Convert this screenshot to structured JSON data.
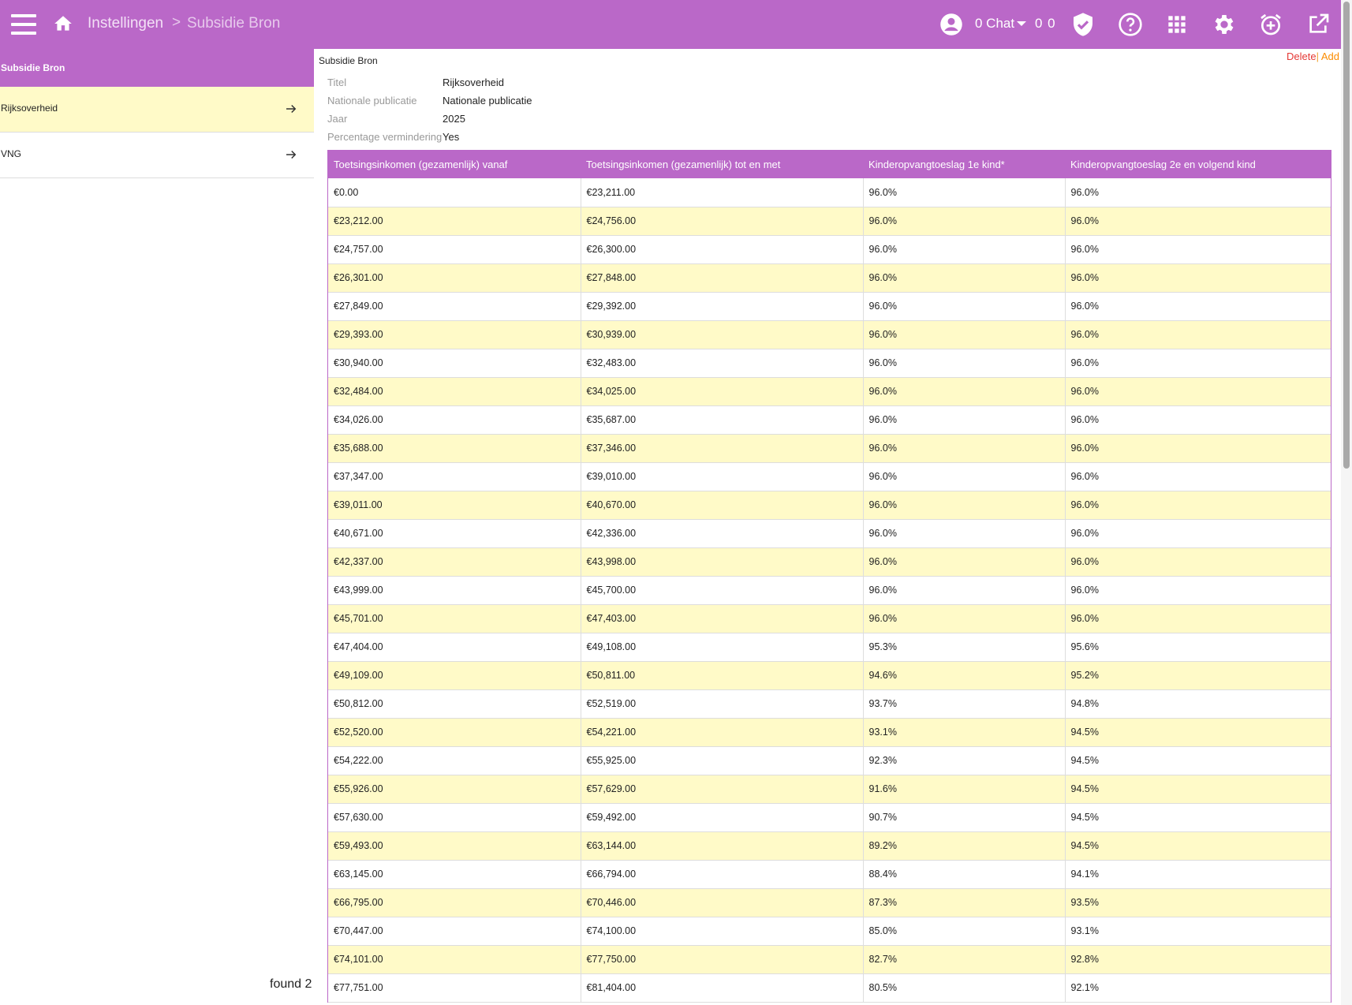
{
  "topbar": {
    "breadcrumb": [
      "Instellingen",
      "Subsidie Bron"
    ],
    "breadcrumb_separator": ">",
    "chat_label": "0 Chat",
    "counts": "0 0",
    "icons": [
      "menu-icon",
      "home-icon",
      "user-icon",
      "shield-check-icon",
      "help-icon",
      "apps-grid-icon",
      "gear-icon",
      "alarm-add-icon",
      "open-external-icon"
    ],
    "bg_color": "#ba68c8"
  },
  "sidebar": {
    "header": "Subsidie Bron",
    "items": [
      {
        "label": "Rijksoverheid",
        "active": true
      },
      {
        "label": "VNG",
        "active": false
      }
    ],
    "found": "found 2"
  },
  "main": {
    "title": "Subsidie Bron",
    "actions": {
      "delete": "Delete",
      "separator": "|",
      "add": "Add"
    },
    "fields": [
      {
        "label": "Titel",
        "value": "Rijksoverheid"
      },
      {
        "label": "Nationale publicatie",
        "value": "Nationale publicatie"
      },
      {
        "label": "Jaar",
        "value": "2025"
      },
      {
        "label": "Percentage vermindering",
        "value": "Yes"
      }
    ],
    "table": {
      "columns": [
        "Toetsingsinkomen (gezamenlijk) vanaf",
        "Toetsingsinkomen (gezamenlijk) tot en met",
        "Kinderopvangtoeslag 1e kind*",
        "Kinderopvangtoeslag 2e en volgend kind"
      ],
      "rows": [
        [
          "€0.00",
          "€23,211.00",
          "96.0%",
          "96.0%"
        ],
        [
          "€23,212.00",
          "€24,756.00",
          "96.0%",
          "96.0%"
        ],
        [
          "€24,757.00",
          "€26,300.00",
          "96.0%",
          "96.0%"
        ],
        [
          "€26,301.00",
          "€27,848.00",
          "96.0%",
          "96.0%"
        ],
        [
          "€27,849.00",
          "€29,392.00",
          "96.0%",
          "96.0%"
        ],
        [
          "€29,393.00",
          "€30,939.00",
          "96.0%",
          "96.0%"
        ],
        [
          "€30,940.00",
          "€32,483.00",
          "96.0%",
          "96.0%"
        ],
        [
          "€32,484.00",
          "€34,025.00",
          "96.0%",
          "96.0%"
        ],
        [
          "€34,026.00",
          "€35,687.00",
          "96.0%",
          "96.0%"
        ],
        [
          "€35,688.00",
          "€37,346.00",
          "96.0%",
          "96.0%"
        ],
        [
          "€37,347.00",
          "€39,010.00",
          "96.0%",
          "96.0%"
        ],
        [
          "€39,011.00",
          "€40,670.00",
          "96.0%",
          "96.0%"
        ],
        [
          "€40,671.00",
          "€42,336.00",
          "96.0%",
          "96.0%"
        ],
        [
          "€42,337.00",
          "€43,998.00",
          "96.0%",
          "96.0%"
        ],
        [
          "€43,999.00",
          "€45,700.00",
          "96.0%",
          "96.0%"
        ],
        [
          "€45,701.00",
          "€47,403.00",
          "96.0%",
          "96.0%"
        ],
        [
          "€47,404.00",
          "€49,108.00",
          "95.3%",
          "95.6%"
        ],
        [
          "€49,109.00",
          "€50,811.00",
          "94.6%",
          "95.2%"
        ],
        [
          "€50,812.00",
          "€52,519.00",
          "93.7%",
          "94.8%"
        ],
        [
          "€52,520.00",
          "€54,221.00",
          "93.1%",
          "94.5%"
        ],
        [
          "€54,222.00",
          "€55,925.00",
          "92.3%",
          "94.5%"
        ],
        [
          "€55,926.00",
          "€57,629.00",
          "91.6%",
          "94.5%"
        ],
        [
          "€57,630.00",
          "€59,492.00",
          "90.7%",
          "94.5%"
        ],
        [
          "€59,493.00",
          "€63,144.00",
          "89.2%",
          "94.5%"
        ],
        [
          "€63,145.00",
          "€66,794.00",
          "88.4%",
          "94.1%"
        ],
        [
          "€66,795.00",
          "€70,446.00",
          "87.3%",
          "93.5%"
        ],
        [
          "€70,447.00",
          "€74,100.00",
          "85.0%",
          "93.1%"
        ],
        [
          "€74,101.00",
          "€77,750.00",
          "82.7%",
          "92.8%"
        ],
        [
          "€77,751.00",
          "€81,404.00",
          "80.5%",
          "92.1%"
        ]
      ]
    }
  }
}
